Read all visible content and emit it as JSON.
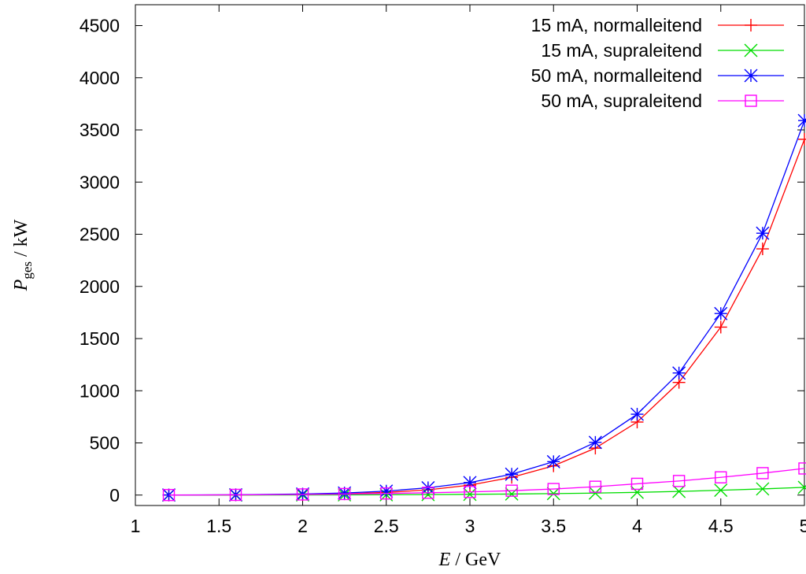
{
  "chart_data": {
    "type": "line",
    "title": "",
    "xlabel": {
      "var": "E",
      "sep": " / ",
      "unit": "GeV"
    },
    "ylabel": {
      "var": "P",
      "sub": "ges",
      "sep": " / ",
      "unit": "kW"
    },
    "xlim": [
      1,
      5
    ],
    "ylim": [
      -100,
      4700
    ],
    "xticks": [
      1,
      1.5,
      2,
      2.5,
      3,
      3.5,
      4,
      4.5,
      5
    ],
    "xtick_labels": [
      "1",
      "1.5",
      "2",
      "2.5",
      "3",
      "3.5",
      "4",
      "4.5",
      "5"
    ],
    "yticks": [
      0,
      500,
      1000,
      1500,
      2000,
      2500,
      3000,
      3500,
      4000,
      4500
    ],
    "ytick_labels": [
      "0",
      "500",
      "1000",
      "1500",
      "2000",
      "2500",
      "3000",
      "3500",
      "4000",
      "4500"
    ],
    "grid": false,
    "legend_position": "top-right",
    "x": [
      1.2,
      1.6,
      2.0,
      2.25,
      2.5,
      2.75,
      3.0,
      3.25,
      3.5,
      3.75,
      4.0,
      4.25,
      4.5,
      4.75,
      5.0
    ],
    "series": [
      {
        "name": "15 mA, normalleitend",
        "color": "#ff0000",
        "marker": "plus",
        "values": [
          0.5,
          1.5,
          5,
          12,
          25,
          50,
          95,
          170,
          280,
          450,
          700,
          1080,
          1610,
          2360,
          3410
        ]
      },
      {
        "name": "15 mA, supraleitend",
        "color": "#00dd00",
        "marker": "cross",
        "values": [
          0.1,
          0.3,
          1,
          2,
          3,
          5,
          7,
          10,
          14,
          19,
          26,
          35,
          46,
          59,
          74
        ]
      },
      {
        "name": "50 mA, normalleitend",
        "color": "#0000ff",
        "marker": "star",
        "values": [
          1,
          3,
          10,
          20,
          38,
          70,
          120,
          200,
          320,
          505,
          775,
          1170,
          1740,
          2510,
          3590
        ]
      },
      {
        "name": "50 mA, supraleitend",
        "color": "#ff00ff",
        "marker": "square",
        "values": [
          0.5,
          2,
          6,
          10,
          15,
          22,
          30,
          42,
          58,
          80,
          108,
          135,
          170,
          210,
          255
        ]
      }
    ]
  }
}
